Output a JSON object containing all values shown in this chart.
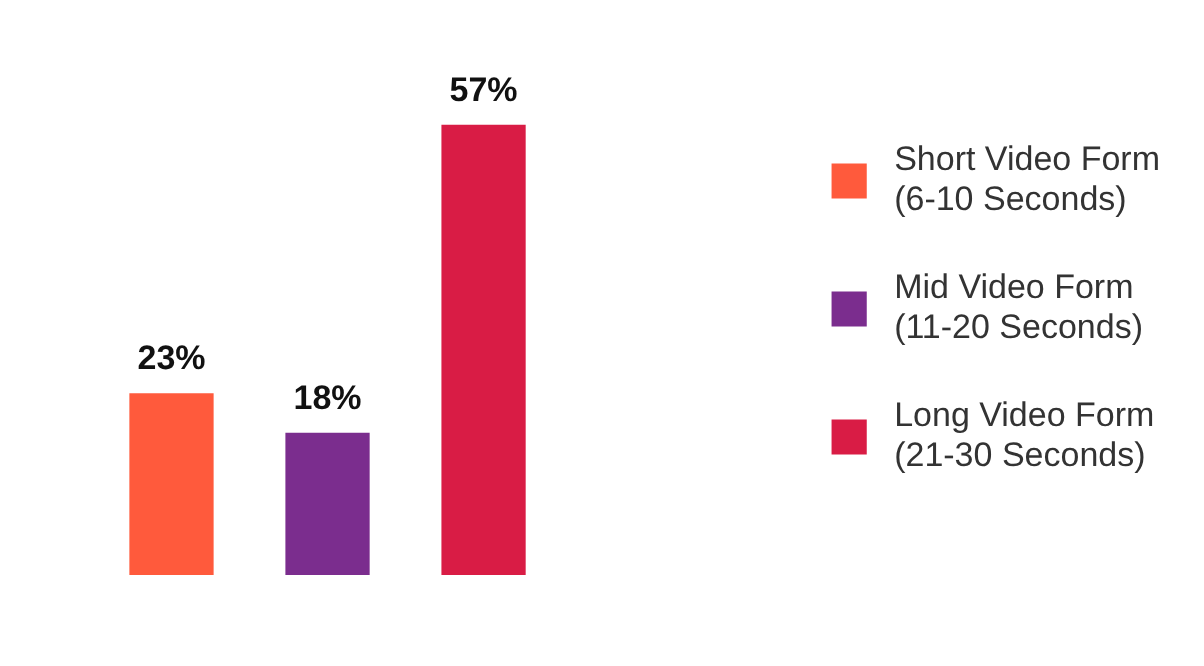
{
  "chart_data": {
    "type": "bar",
    "stacked": true,
    "categories": [
      null,
      null,
      null
    ],
    "tick_labels": false,
    "legend": "right",
    "series": [
      {
        "name": "Short Video Form\n(6-10 Seconds)",
        "color": "#ff5a3c",
        "values": [
          23,
          null,
          null
        ],
        "value_labels": [
          "23%",
          null,
          null
        ]
      },
      {
        "name": "Mid Video Form\n(11-20 Seconds)",
        "color": "#7b2d8e",
        "values": [
          null,
          18,
          null
        ],
        "value_labels": [
          null,
          "18%",
          null
        ]
      },
      {
        "name": "Long Video Form\n(21-30 Seconds)",
        "color": "#d91c45",
        "values": [
          null,
          null,
          57
        ],
        "value_labels": [
          null,
          null,
          "57%"
        ]
      }
    ]
  }
}
